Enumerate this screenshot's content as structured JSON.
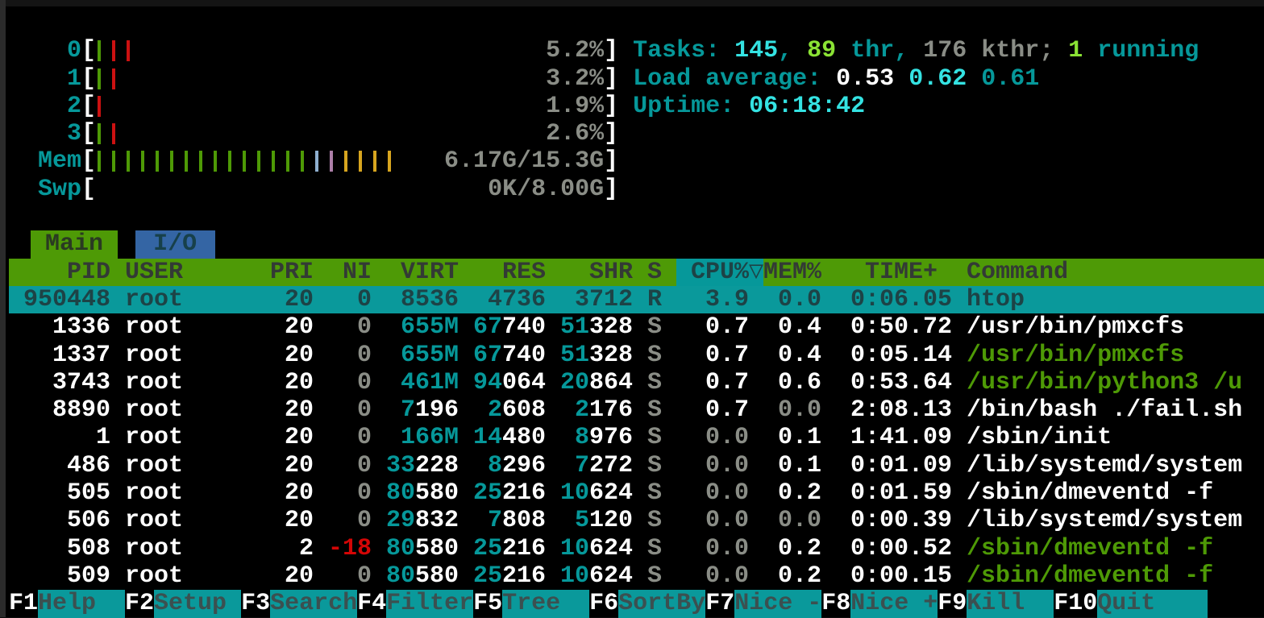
{
  "colors": {
    "background": "#000000",
    "accent_teal": "#06989a",
    "bright_cyan": "#34e2e2",
    "bright_green": "#8ae234",
    "dark_green": "#4e9a06",
    "gray": "#8a8d86",
    "red": "#d40606",
    "tab_blue": "#3465a4",
    "mem_buffer_blue": "#8fb0d0",
    "mem_shared_purple": "#ad7fa8",
    "mem_cache_yellow": "#d7a51f"
  },
  "meters": {
    "bracket_open": "[",
    "bracket_close": "]",
    "cpu": [
      {
        "label": "0",
        "value": "5.2%",
        "bars": [
          "green",
          "red",
          "red"
        ]
      },
      {
        "label": "1",
        "value": "3.2%",
        "bars": [
          "green",
          "red"
        ]
      },
      {
        "label": "2",
        "value": "1.9%",
        "bars": [
          "red"
        ]
      },
      {
        "label": "3",
        "value": "2.6%",
        "bars": [
          "green",
          "red"
        ]
      }
    ],
    "mem": {
      "label": "Mem",
      "value": "6.17G/15.3G",
      "bars": [
        "green",
        "green",
        "green",
        "green",
        "green",
        "green",
        "green",
        "green",
        "green",
        "green",
        "green",
        "green",
        "green",
        "green",
        "green",
        "blue",
        "purple",
        "yellow",
        "yellow",
        "yellow",
        "yellow"
      ]
    },
    "swp": {
      "label": "Swp",
      "value": "0K/8.00G",
      "bars": []
    }
  },
  "summary": {
    "tasks_label": "Tasks: ",
    "tasks_count": "145",
    "sep1": ", ",
    "thr_count": "89",
    "thr_label": " thr",
    "sep2": ", ",
    "kthr_count": "176",
    "kthr_label": " kthr; ",
    "running_count": "1",
    "running_label": " running",
    "load_label": "Load average: ",
    "load1": "0.53",
    "sp1": " ",
    "load5": "0.62",
    "sp2": " ",
    "load15": "0.61",
    "uptime_label": "Uptime: ",
    "uptime_value": "06:18:42"
  },
  "tabs": [
    {
      "label": "Main"
    },
    {
      "label": "I/O"
    }
  ],
  "columns": {
    "pid": "PID",
    "user": "USER",
    "pri": "PRI",
    "ni": "NI",
    "virt": "VIRT",
    "res": "RES",
    "shr": "SHR",
    "s": "S",
    "cpu": "CPU%",
    "sort_arrow": "▽",
    "mem": "MEM%",
    "time": "TIME+",
    "command": "Command"
  },
  "rows": [
    {
      "pid": "950448",
      "user": "root",
      "pri": "20",
      "ni": "0",
      "virt_hi": "",
      "virt_lo": "8536",
      "res_hi": "",
      "res_lo": "4736",
      "shr_hi": "",
      "shr_lo": "3712",
      "s": "R",
      "cpu": "3.9",
      "mem": "0.0",
      "time": "0:06.05",
      "cmd": "htop"
    },
    {
      "pid": "1336",
      "user": "root",
      "pri": "20",
      "ni": "0",
      "virt_hi": "655M",
      "virt_lo": "",
      "res_hi": "67",
      "res_lo": "740",
      "shr_hi": "51",
      "shr_lo": "328",
      "s": "S",
      "cpu": "0.7",
      "mem": "0.4",
      "time": "0:50.72",
      "cmd": "/usr/bin/pmxcfs"
    },
    {
      "pid": "1337",
      "user": "root",
      "pri": "20",
      "ni": "0",
      "virt_hi": "655M",
      "virt_lo": "",
      "res_hi": "67",
      "res_lo": "740",
      "shr_hi": "51",
      "shr_lo": "328",
      "s": "S",
      "cpu": "0.7",
      "mem": "0.4",
      "time": "0:05.14",
      "cmd": "/usr/bin/pmxcfs"
    },
    {
      "pid": "3743",
      "user": "root",
      "pri": "20",
      "ni": "0",
      "virt_hi": "461M",
      "virt_lo": "",
      "res_hi": "94",
      "res_lo": "064",
      "shr_hi": "20",
      "shr_lo": "864",
      "s": "S",
      "cpu": "0.7",
      "mem": "0.6",
      "time": "0:53.64",
      "cmd": "/usr/bin/python3 /u"
    },
    {
      "pid": "8890",
      "user": "root",
      "pri": "20",
      "ni": "0",
      "virt_hi": "7",
      "virt_lo": "196",
      "res_hi": "2",
      "res_lo": "608",
      "shr_hi": "2",
      "shr_lo": "176",
      "s": "S",
      "cpu": "0.7",
      "mem": "0.0",
      "time": "2:08.13",
      "cmd": "/bin/bash ./fail.sh"
    },
    {
      "pid": "1",
      "user": "root",
      "pri": "20",
      "ni": "0",
      "virt_hi": "166M",
      "virt_lo": "",
      "res_hi": "14",
      "res_lo": "480",
      "shr_hi": "8",
      "shr_lo": "976",
      "s": "S",
      "cpu": "0.0",
      "mem": "0.1",
      "time": "1:41.09",
      "cmd": "/sbin/init"
    },
    {
      "pid": "486",
      "user": "root",
      "pri": "20",
      "ni": "0",
      "virt_hi": "33",
      "virt_lo": "228",
      "res_hi": "8",
      "res_lo": "296",
      "shr_hi": "7",
      "shr_lo": "272",
      "s": "S",
      "cpu": "0.0",
      "mem": "0.1",
      "time": "0:01.09",
      "cmd": "/lib/systemd/system"
    },
    {
      "pid": "505",
      "user": "root",
      "pri": "20",
      "ni": "0",
      "virt_hi": "80",
      "virt_lo": "580",
      "res_hi": "25",
      "res_lo": "216",
      "shr_hi": "10",
      "shr_lo": "624",
      "s": "S",
      "cpu": "0.0",
      "mem": "0.2",
      "time": "0:01.59",
      "cmd": "/sbin/dmeventd -f"
    },
    {
      "pid": "506",
      "user": "root",
      "pri": "20",
      "ni": "0",
      "virt_hi": "29",
      "virt_lo": "832",
      "res_hi": "7",
      "res_lo": "808",
      "shr_hi": "5",
      "shr_lo": "120",
      "s": "S",
      "cpu": "0.0",
      "mem": "0.0",
      "time": "0:00.39",
      "cmd": "/lib/systemd/system"
    },
    {
      "pid": "508",
      "user": "root",
      "pri": "2",
      "ni": "-18",
      "virt_hi": "80",
      "virt_lo": "580",
      "res_hi": "25",
      "res_lo": "216",
      "shr_hi": "10",
      "shr_lo": "624",
      "s": "S",
      "cpu": "0.0",
      "mem": "0.2",
      "time": "0:00.52",
      "cmd": "/sbin/dmeventd -f"
    },
    {
      "pid": "509",
      "user": "root",
      "pri": "20",
      "ni": "0",
      "virt_hi": "80",
      "virt_lo": "580",
      "res_hi": "25",
      "res_lo": "216",
      "shr_hi": "10",
      "shr_lo": "624",
      "s": "S",
      "cpu": "0.0",
      "mem": "0.2",
      "time": "0:00.15",
      "cmd": "/sbin/dmeventd -f"
    }
  ],
  "fnkeys": [
    {
      "key": "F1",
      "label": "Help"
    },
    {
      "key": "F2",
      "label": "Setup"
    },
    {
      "key": "F3",
      "label": "Search"
    },
    {
      "key": "F4",
      "label": "Filter"
    },
    {
      "key": "F5",
      "label": "Tree"
    },
    {
      "key": "F6",
      "label": "SortBy"
    },
    {
      "key": "F7",
      "label": "Nice -"
    },
    {
      "key": "F8",
      "label": "Nice +"
    },
    {
      "key": "F9",
      "label": "Kill"
    },
    {
      "key": "F10",
      "label": "Quit"
    }
  ]
}
